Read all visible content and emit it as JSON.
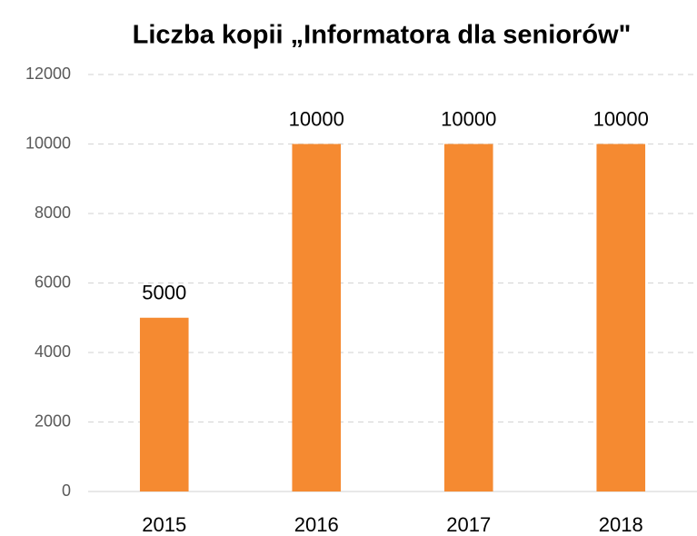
{
  "chart_data": {
    "type": "bar",
    "title": "Liczba kopii „Informatora dla seniorów\"",
    "categories": [
      "2015",
      "2016",
      "2017",
      "2018"
    ],
    "values": [
      5000,
      10000,
      10000,
      10000
    ],
    "color": "#f58a31",
    "ylim": [
      0,
      12000
    ],
    "yticks": [
      0,
      2000,
      4000,
      6000,
      8000,
      10000,
      12000
    ],
    "grid": true
  }
}
